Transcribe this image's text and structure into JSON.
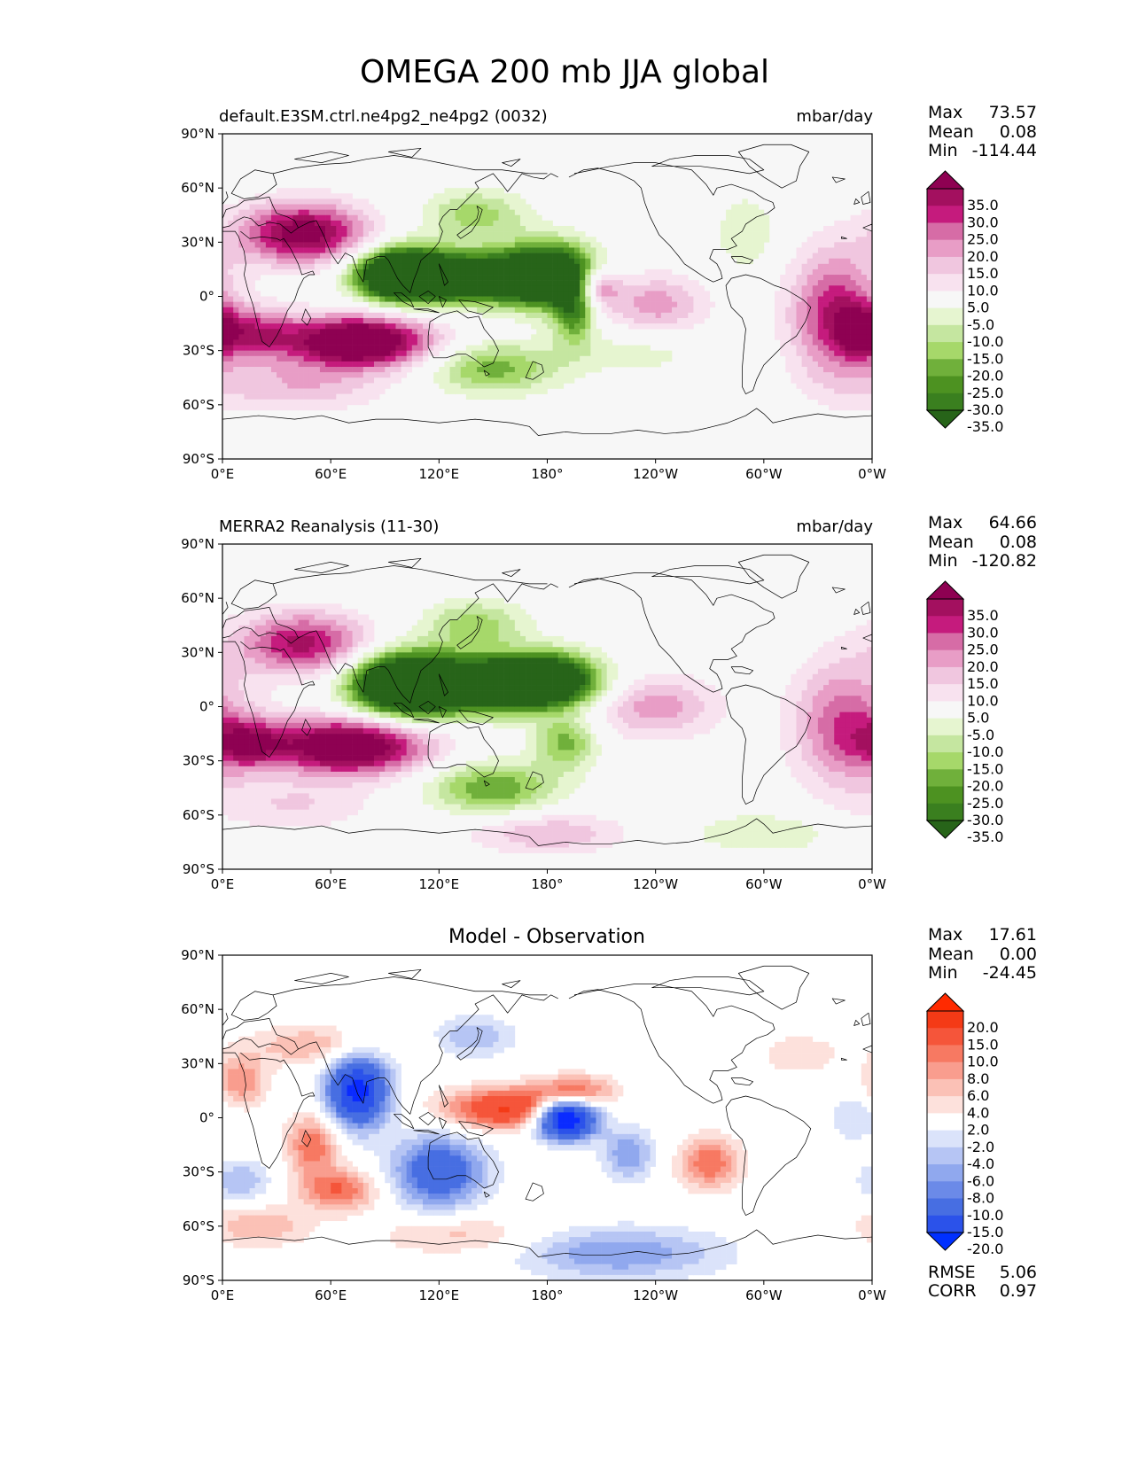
{
  "title": "OMEGA 200 mb JJA global",
  "lat_ticks": [
    "90°N",
    "60°N",
    "30°N",
    "0°",
    "30°S",
    "60°S",
    "90°S"
  ],
  "lon_ticks": [
    "0°E",
    "60°E",
    "120°E",
    "180°",
    "120°W",
    "60°W",
    "0°W"
  ],
  "panels": [
    {
      "id": "model",
      "left_title": "default.E3SM.ctrl.ne4pg2_ne4pg2 (0032)",
      "center_title": "",
      "right_title": "mbar/day",
      "stats": [
        {
          "label": "Max",
          "value": "73.57"
        },
        {
          "label": "Mean",
          "value": "0.08"
        },
        {
          "label": "Min",
          "value": "-114.44"
        }
      ],
      "extra_stats": [],
      "colorbar": "omega",
      "field": [
        {
          "lon": 45,
          "lat": 35,
          "sx": 25,
          "sy": 12,
          "v": 40
        },
        {
          "lon": 75,
          "lat": -25,
          "sx": 28,
          "sy": 10,
          "v": 52
        },
        {
          "lon": 20,
          "lat": -20,
          "sx": 15,
          "sy": 10,
          "v": 22
        },
        {
          "lon": 100,
          "lat": 12,
          "sx": 18,
          "sy": 10,
          "v": -70
        },
        {
          "lon": 140,
          "lat": 10,
          "sx": 25,
          "sy": 9,
          "v": -55
        },
        {
          "lon": 180,
          "lat": 12,
          "sx": 18,
          "sy": 12,
          "v": -55
        },
        {
          "lon": 195,
          "lat": -5,
          "sx": 8,
          "sy": 14,
          "v": -32
        },
        {
          "lon": 140,
          "lat": 45,
          "sx": 20,
          "sy": 10,
          "v": -18
        },
        {
          "lon": 150,
          "lat": -40,
          "sx": 25,
          "sy": 10,
          "v": -22
        },
        {
          "lon": 205,
          "lat": 5,
          "sx": 10,
          "sy": 8,
          "v": 30
        },
        {
          "lon": 240,
          "lat": -5,
          "sx": 20,
          "sy": 12,
          "v": 18
        },
        {
          "lon": 340,
          "lat": -10,
          "sx": 18,
          "sy": 25,
          "v": 30
        },
        {
          "lon": 355,
          "lat": -20,
          "sx": 10,
          "sy": 10,
          "v": 25
        },
        {
          "lon": 40,
          "lat": -50,
          "sx": 35,
          "sy": 10,
          "v": 14
        },
        {
          "lon": 230,
          "lat": -30,
          "sx": 30,
          "sy": 10,
          "v": -8
        },
        {
          "lon": 290,
          "lat": 35,
          "sx": 12,
          "sy": 15,
          "v": -10
        }
      ]
    },
    {
      "id": "obs",
      "left_title": "MERRA2 Reanalysis (11-30)",
      "center_title": "",
      "right_title": "mbar/day",
      "stats": [
        {
          "label": "Max",
          "value": "64.66"
        },
        {
          "label": "Mean",
          "value": "0.08"
        },
        {
          "label": "Min",
          "value": "-120.82"
        }
      ],
      "extra_stats": [],
      "colorbar": "omega",
      "field": [
        {
          "lon": 45,
          "lat": 35,
          "sx": 25,
          "sy": 12,
          "v": 32
        },
        {
          "lon": 70,
          "lat": -22,
          "sx": 30,
          "sy": 11,
          "v": 48
        },
        {
          "lon": 15,
          "lat": -20,
          "sx": 15,
          "sy": 10,
          "v": 25
        },
        {
          "lon": 100,
          "lat": 12,
          "sx": 20,
          "sy": 12,
          "v": -65
        },
        {
          "lon": 145,
          "lat": 12,
          "sx": 28,
          "sy": 10,
          "v": -58
        },
        {
          "lon": 180,
          "lat": 15,
          "sx": 20,
          "sy": 10,
          "v": -50
        },
        {
          "lon": 140,
          "lat": 45,
          "sx": 20,
          "sy": 10,
          "v": -18
        },
        {
          "lon": 150,
          "lat": -45,
          "sx": 25,
          "sy": 10,
          "v": -25
        },
        {
          "lon": 190,
          "lat": -20,
          "sx": 12,
          "sy": 10,
          "v": -22
        },
        {
          "lon": 240,
          "lat": 0,
          "sx": 25,
          "sy": 12,
          "v": 18
        },
        {
          "lon": 345,
          "lat": -10,
          "sx": 20,
          "sy": 25,
          "v": 25
        },
        {
          "lon": 180,
          "lat": -70,
          "sx": 30,
          "sy": 8,
          "v": 15
        },
        {
          "lon": 40,
          "lat": -55,
          "sx": 30,
          "sy": 10,
          "v": 10
        },
        {
          "lon": 300,
          "lat": -70,
          "sx": 30,
          "sy": 8,
          "v": -10
        }
      ]
    },
    {
      "id": "diff",
      "left_title": "",
      "center_title": "Model - Observation",
      "right_title": "",
      "stats": [
        {
          "label": "Max",
          "value": "17.61"
        },
        {
          "label": "Mean",
          "value": "0.00"
        },
        {
          "label": "Min",
          "value": "-24.45"
        }
      ],
      "extra_stats": [
        {
          "label": "RMSE",
          "value": "5.06"
        },
        {
          "label": "CORR",
          "value": "0.97"
        }
      ],
      "colorbar": "diff",
      "field": [
        {
          "lon": 75,
          "lat": 15,
          "sx": 12,
          "sy": 14,
          "v": -22
        },
        {
          "lon": 190,
          "lat": 0,
          "sx": 12,
          "sy": 8,
          "v": -30
        },
        {
          "lon": 160,
          "lat": 5,
          "sx": 25,
          "sy": 8,
          "v": 16
        },
        {
          "lon": 195,
          "lat": 15,
          "sx": 15,
          "sy": 6,
          "v": 10
        },
        {
          "lon": 120,
          "lat": -30,
          "sx": 18,
          "sy": 14,
          "v": -14
        },
        {
          "lon": 50,
          "lat": -15,
          "sx": 10,
          "sy": 12,
          "v": 10
        },
        {
          "lon": 65,
          "lat": -40,
          "sx": 15,
          "sy": 8,
          "v": 10
        },
        {
          "lon": 50,
          "lat": 40,
          "sx": 25,
          "sy": 8,
          "v": 6
        },
        {
          "lon": 10,
          "lat": 20,
          "sx": 10,
          "sy": 10,
          "v": 8
        },
        {
          "lon": 140,
          "lat": 45,
          "sx": 15,
          "sy": 8,
          "v": -6
        },
        {
          "lon": 225,
          "lat": -20,
          "sx": 10,
          "sy": 10,
          "v": -8
        },
        {
          "lon": 270,
          "lat": -25,
          "sx": 12,
          "sy": 10,
          "v": 10
        },
        {
          "lon": 220,
          "lat": -75,
          "sx": 40,
          "sy": 10,
          "v": -8
        },
        {
          "lon": 320,
          "lat": 35,
          "sx": 15,
          "sy": 8,
          "v": 4
        },
        {
          "lon": 350,
          "lat": 0,
          "sx": 10,
          "sy": 10,
          "v": -4
        },
        {
          "lon": 10,
          "lat": -35,
          "sx": 12,
          "sy": 8,
          "v": -6
        },
        {
          "lon": 130,
          "lat": -65,
          "sx": 30,
          "sy": 8,
          "v": 5
        },
        {
          "lon": 20,
          "lat": -60,
          "sx": 20,
          "sy": 8,
          "v": 6
        }
      ]
    }
  ],
  "colorbars": {
    "omega": {
      "labels": [
        "35.0",
        "30.0",
        "25.0",
        "20.0",
        "15.0",
        "10.0",
        "5.0",
        "-5.0",
        "-10.0",
        "-15.0",
        "-20.0",
        "-25.0",
        "-30.0",
        "-35.0"
      ],
      "levels": [
        -35,
        -30,
        -25,
        -20,
        -15,
        -10,
        -5,
        5,
        10,
        15,
        20,
        25,
        30,
        35
      ],
      "colors": [
        "#276419",
        "#3a7f1f",
        "#4d9221",
        "#70b03b",
        "#a6d86a",
        "#c5e6a0",
        "#e6f5d0",
        "#f7f7f7",
        "#f8e2ef",
        "#f0c6df",
        "#e89dc6",
        "#d66ca6",
        "#c51b7d",
        "#a3105f",
        "#8e0152"
      ],
      "under": "#276419",
      "over": "#8e0152"
    },
    "diff": {
      "labels": [
        "20.0",
        "15.0",
        "10.0",
        "8.0",
        "6.0",
        "4.0",
        "2.0",
        "-2.0",
        "-4.0",
        "-6.0",
        "-8.0",
        "-10.0",
        "-15.0",
        "-20.0"
      ],
      "levels": [
        -20,
        -15,
        -10,
        -8,
        -6,
        -4,
        -2,
        2,
        4,
        6,
        8,
        10,
        15,
        20
      ],
      "colors": [
        "#0a2bff",
        "#2b52ea",
        "#476ee2",
        "#6b8ae8",
        "#90a8ee",
        "#b6c5f4",
        "#dbe3fa",
        "#ffffff",
        "#fde1dc",
        "#fbc1b6",
        "#f99d8e",
        "#f77962",
        "#f5553a",
        "#f43a16",
        "#ff2a00"
      ],
      "under": "#0030ff",
      "over": "#ff2a00"
    }
  }
}
